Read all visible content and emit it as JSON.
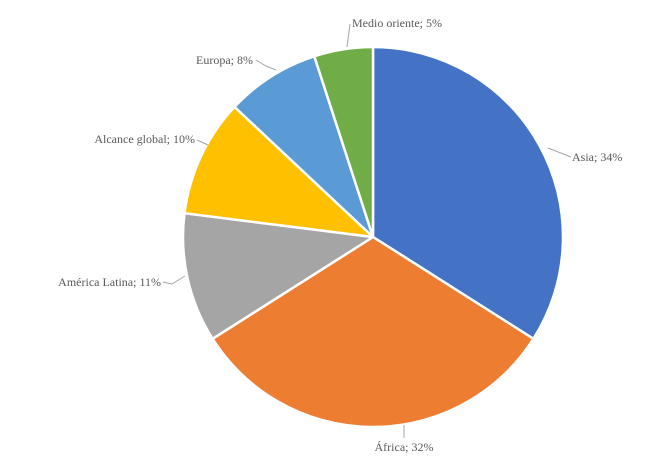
{
  "chart_data": {
    "type": "pie",
    "title": "",
    "legend": "none",
    "slices": [
      {
        "name": "Asia",
        "value": 34,
        "label": "Asia; 34%",
        "color": "#4472c4"
      },
      {
        "name": "África",
        "value": 32,
        "label": "África; 32%",
        "color": "#ed7d31"
      },
      {
        "name": "América Latina",
        "value": 11,
        "label": "América Latina; 11%",
        "color": "#a5a5a5"
      },
      {
        "name": "Alcance global",
        "value": 10,
        "label": "Alcance global; 10%",
        "color": "#ffc000"
      },
      {
        "name": "Europa",
        "value": 8,
        "label": "Europa; 8%",
        "color": "#5b9bd5"
      },
      {
        "name": "Medio oriente",
        "value": 5,
        "label": "Medio oriente; 5%",
        "color": "#70ad47"
      }
    ]
  }
}
